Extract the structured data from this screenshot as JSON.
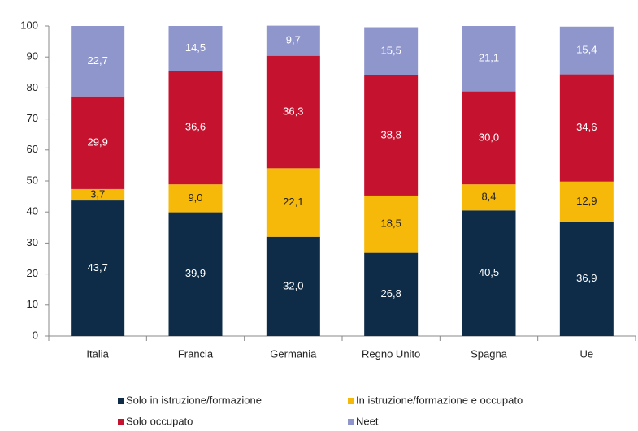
{
  "chart_data": {
    "type": "bar",
    "stacked": true,
    "categories": [
      "Italia",
      "Francia",
      "Germania",
      "Regno Unito",
      "Spagna",
      "Ue"
    ],
    "series": [
      {
        "name": "Solo in istruzione/formazione",
        "color": "#0e2c48",
        "values": [
          43.7,
          39.9,
          32.0,
          26.8,
          40.5,
          36.9
        ],
        "value_labels": [
          "43,7",
          "39,9",
          "32,0",
          "26,8",
          "40,5",
          "36,9"
        ]
      },
      {
        "name": "In istruzione/formazione e occupato",
        "color": "#f6b90a",
        "values": [
          3.7,
          9.0,
          22.1,
          18.5,
          8.4,
          12.9
        ],
        "value_labels": [
          "3,7",
          "9,0",
          "22,1",
          "18,5",
          "8,4",
          "12,9"
        ]
      },
      {
        "name": "Solo occupato",
        "color": "#c5122f",
        "values": [
          29.9,
          36.6,
          36.3,
          38.8,
          30.0,
          34.6
        ],
        "value_labels": [
          "29,9",
          "36,6",
          "36,3",
          "38,8",
          "30,0",
          "34,6"
        ]
      },
      {
        "name": "Neet",
        "color": "#8f96cc",
        "values": [
          22.7,
          14.5,
          9.7,
          15.5,
          21.1,
          15.4
        ],
        "value_labels": [
          "22,7",
          "14,5",
          "9,7",
          "15,5",
          "21,1",
          "15,4"
        ]
      }
    ],
    "ylim": [
      0,
      100
    ],
    "yticks": [
      0,
      10,
      20,
      30,
      40,
      50,
      60,
      70,
      80,
      90,
      100
    ],
    "grid": false
  }
}
